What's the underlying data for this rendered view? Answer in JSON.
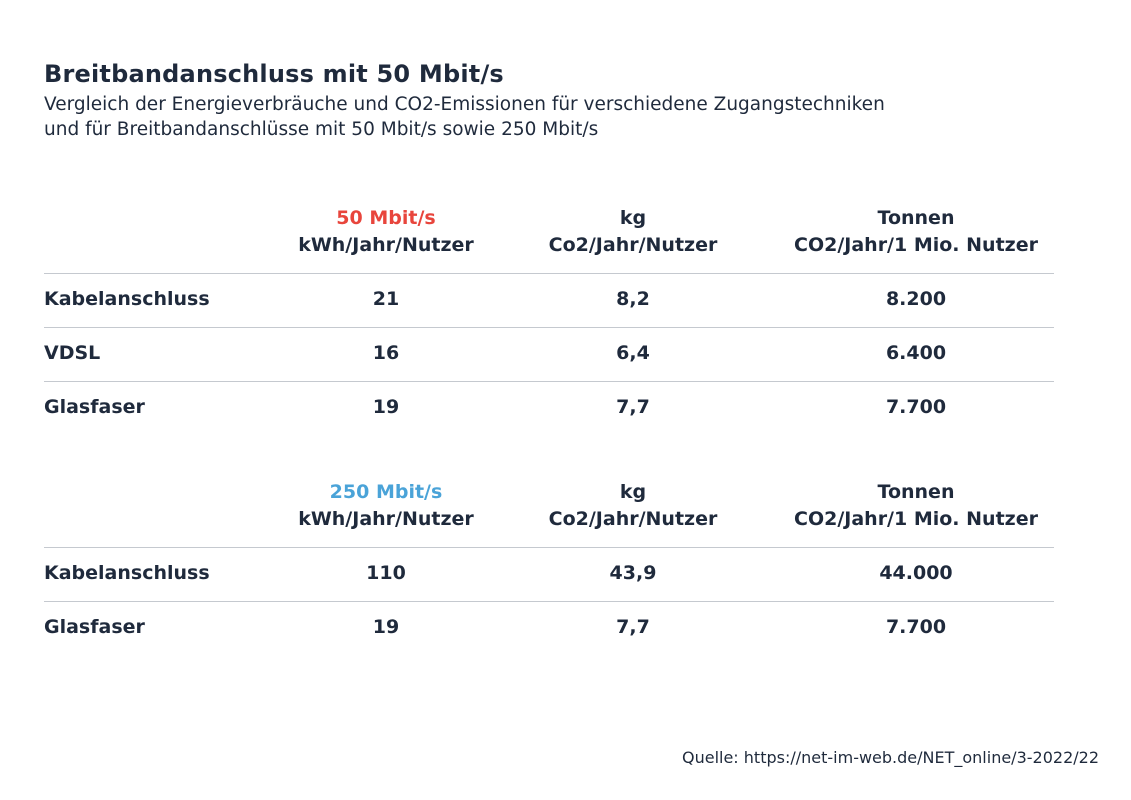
{
  "chart_data": {
    "type": "table",
    "title": "Breitbandanschluss mit 50 Mbit/s",
    "subtitle_line1": "Vergleich der Energieverbräuche und CO2-Emissionen für verschiedene Zugangstechniken",
    "subtitle_line2": "und für Breitbandanschlüsse mit 50 Mbit/s sowie 250 Mbit/s",
    "tables": [
      {
        "speed": "50 Mbit/s",
        "speed_color": "#e8453c",
        "col1_header": "kWh/Jahr/Nutzer",
        "col2_header_line1": "kg",
        "col2_header_line2": "Co2/Jahr/Nutzer",
        "col3_header_line1": "Tonnen",
        "col3_header_line2": "CO2/Jahr/1 Mio. Nutzer",
        "rows": [
          {
            "label": "Kabelanschluss",
            "kwh": "21",
            "kg": "8,2",
            "tonnen": "8.200"
          },
          {
            "label": "VDSL",
            "kwh": "16",
            "kg": "6,4",
            "tonnen": "6.400"
          },
          {
            "label": "Glasfaser",
            "kwh": "19",
            "kg": "7,7",
            "tonnen": "7.700"
          }
        ]
      },
      {
        "speed": "250 Mbit/s",
        "speed_color": "#4aa3d8",
        "col1_header": "kWh/Jahr/Nutzer",
        "col2_header_line1": "kg",
        "col2_header_line2": "Co2/Jahr/Nutzer",
        "col3_header_line1": "Tonnen",
        "col3_header_line2": "CO2/Jahr/1 Mio. Nutzer",
        "rows": [
          {
            "label": "Kabelanschluss",
            "kwh": "110",
            "kg": "43,9",
            "tonnen": "44.000"
          },
          {
            "label": "Glasfaser",
            "kwh": "19",
            "kg": "7,7",
            "tonnen": "7.700"
          }
        ]
      }
    ],
    "source": "Quelle: https://net-im-web.de/NET_online/3-2022/22"
  }
}
